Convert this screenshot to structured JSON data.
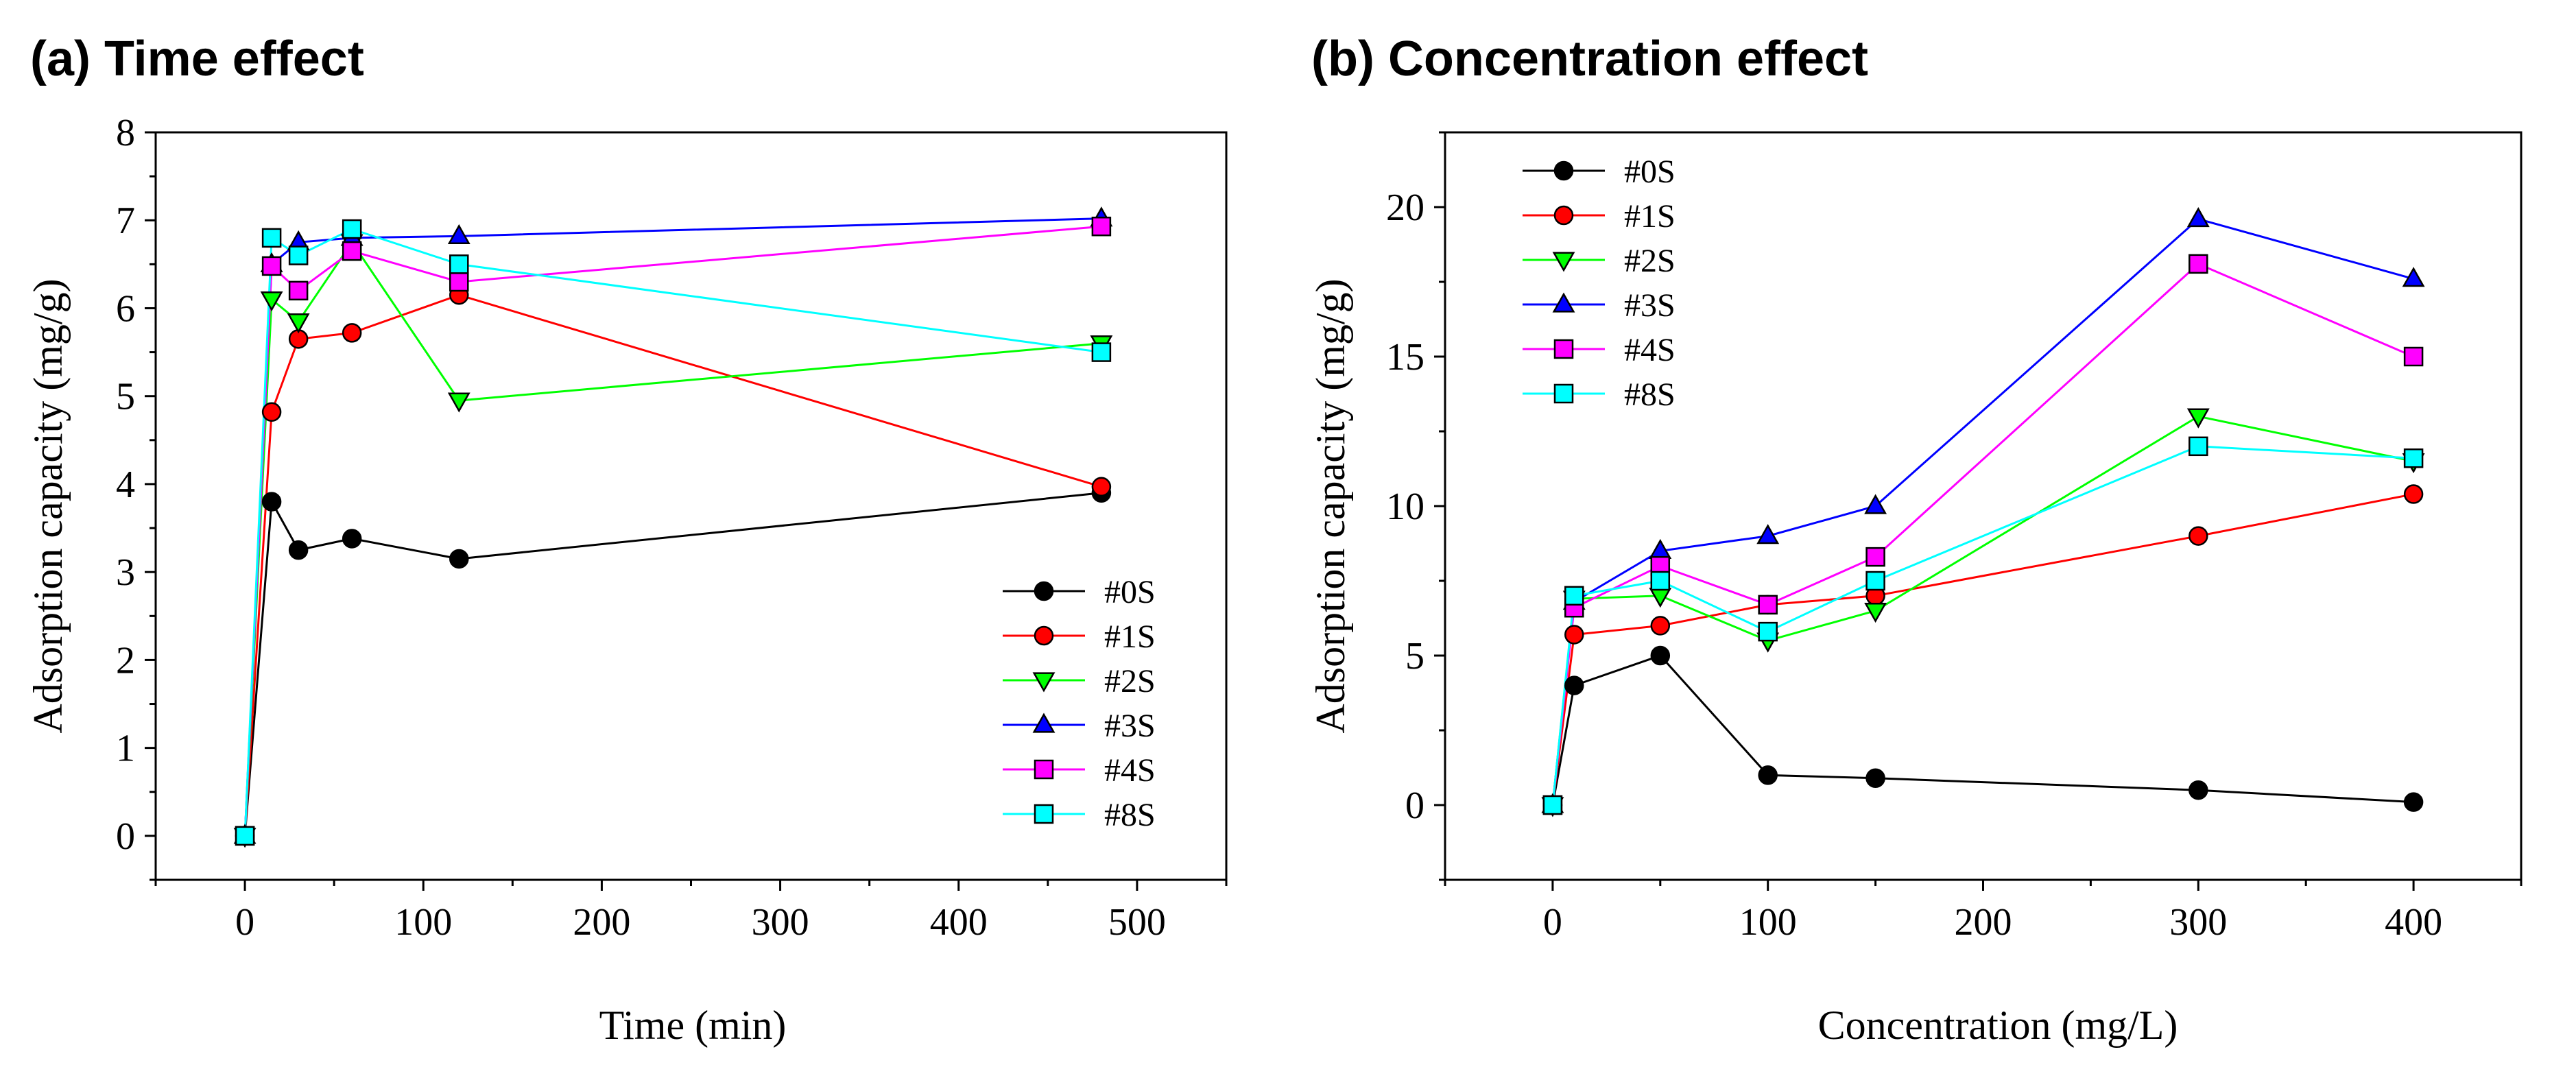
{
  "chart_data": [
    {
      "type": "line",
      "title": "(a) Time effect",
      "xlabel": "Time (min)",
      "ylabel": "Adsorption capacity (mg/g)",
      "xlim": [
        -50,
        550
      ],
      "ylim": [
        -0.5,
        8
      ],
      "xticks": [
        0,
        100,
        200,
        300,
        400,
        500
      ],
      "yticks": [
        0,
        1,
        2,
        3,
        4,
        5,
        6,
        7,
        8
      ],
      "legend_position": "bottom-right",
      "x": [
        0,
        15,
        30,
        60,
        120,
        480
      ],
      "series": [
        {
          "name": "#0S",
          "color": "#000000",
          "marker": "circle",
          "values": [
            0,
            3.8,
            3.25,
            3.38,
            3.15,
            3.9
          ]
        },
        {
          "name": "#1S",
          "color": "#ff0000",
          "marker": "circle",
          "values": [
            0,
            4.82,
            5.65,
            5.72,
            6.15,
            3.97
          ]
        },
        {
          "name": "#2S",
          "color": "#00ff00",
          "marker": "triangle-down",
          "values": [
            0,
            6.1,
            5.85,
            6.75,
            4.95,
            5.6
          ]
        },
        {
          "name": "#3S",
          "color": "#0000ff",
          "marker": "triangle-up",
          "values": [
            0,
            6.5,
            6.75,
            6.8,
            6.82,
            7.02
          ]
        },
        {
          "name": "#4S",
          "color": "#ff00ff",
          "marker": "square",
          "values": [
            0,
            6.48,
            6.2,
            6.65,
            6.3,
            6.93
          ]
        },
        {
          "name": "#8S",
          "color": "#00ffff",
          "marker": "square",
          "values": [
            0,
            6.8,
            6.6,
            6.9,
            6.5,
            5.5
          ]
        }
      ]
    },
    {
      "type": "line",
      "title": "(b) Concentration effect",
      "xlabel": "Concentration (mg/L)",
      "ylabel": "Adsorption capacity (mg/g)",
      "xlim": [
        -50,
        450
      ],
      "ylim": [
        -2.5,
        22.5
      ],
      "xticks": [
        0,
        100,
        200,
        300,
        400
      ],
      "yticks": [
        0,
        5,
        10,
        15,
        20
      ],
      "legend_position": "top-left",
      "x": [
        0,
        10,
        50,
        100,
        150,
        300,
        400
      ],
      "series": [
        {
          "name": "#0S",
          "color": "#000000",
          "marker": "circle",
          "values": [
            0,
            4,
            5,
            1,
            0.9,
            0.5,
            0.1
          ]
        },
        {
          "name": "#1S",
          "color": "#ff0000",
          "marker": "circle",
          "values": [
            0,
            5.7,
            6,
            6.7,
            7,
            9,
            10.4
          ]
        },
        {
          "name": "#2S",
          "color": "#00ff00",
          "marker": "triangle-down",
          "values": [
            0,
            6.9,
            7,
            5.5,
            6.5,
            13,
            11.5
          ]
        },
        {
          "name": "#3S",
          "color": "#0000ff",
          "marker": "triangle-up",
          "values": [
            0,
            6.8,
            8.5,
            9,
            10,
            19.6,
            17.6
          ]
        },
        {
          "name": "#4S",
          "color": "#ff00ff",
          "marker": "square",
          "values": [
            0,
            6.6,
            8,
            6.7,
            8.3,
            18.1,
            15
          ]
        },
        {
          "name": "#8S",
          "color": "#00ffff",
          "marker": "square",
          "values": [
            0,
            7,
            7.5,
            5.8,
            7.5,
            12,
            11.6
          ]
        }
      ]
    }
  ]
}
